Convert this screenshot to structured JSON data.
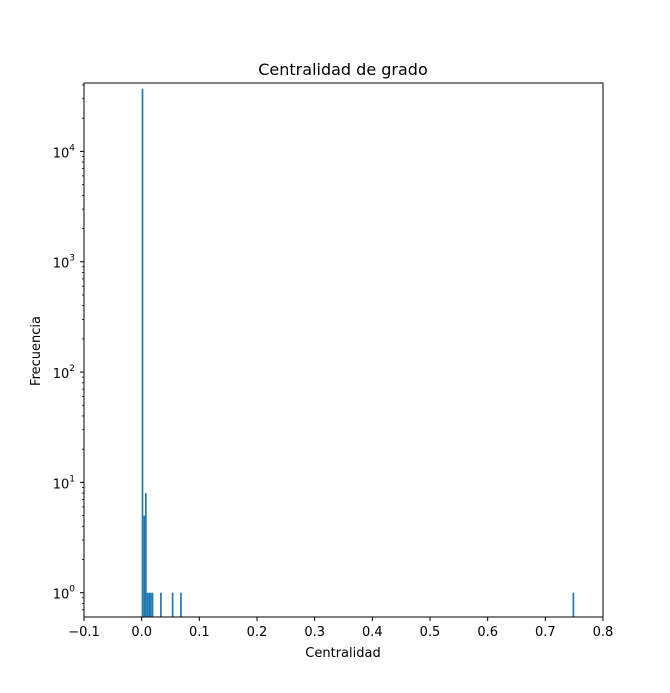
{
  "chart_data": {
    "type": "bar",
    "title": "Centralidad de grado",
    "xlabel": "Centralidad",
    "ylabel": "Frecuencia",
    "xlim": [
      -0.1,
      0.8
    ],
    "ylim_log10": [
      -0.22,
      4.62
    ],
    "yscale": "log",
    "bin_width": 0.0029,
    "x_ticks": [
      {
        "value": -0.1,
        "label": "−0.1"
      },
      {
        "value": 0.0,
        "label": "0.0"
      },
      {
        "value": 0.1,
        "label": "0.1"
      },
      {
        "value": 0.2,
        "label": "0.2"
      },
      {
        "value": 0.3,
        "label": "0.3"
      },
      {
        "value": 0.4,
        "label": "0.4"
      },
      {
        "value": 0.5,
        "label": "0.5"
      },
      {
        "value": 0.6,
        "label": "0.6"
      },
      {
        "value": 0.7,
        "label": "0.7"
      },
      {
        "value": 0.8,
        "label": "0.8"
      }
    ],
    "y_ticks": [
      {
        "exp": 0,
        "base": "10",
        "sup": "0"
      },
      {
        "exp": 1,
        "base": "10",
        "sup": "1"
      },
      {
        "exp": 2,
        "base": "10",
        "sup": "2"
      },
      {
        "exp": 3,
        "base": "10",
        "sup": "3"
      },
      {
        "exp": 4,
        "base": "10",
        "sup": "4"
      }
    ],
    "bars": [
      {
        "x": 0.0,
        "value": 37000
      },
      {
        "x": 0.0029,
        "value": 5
      },
      {
        "x": 0.0058,
        "value": 8
      },
      {
        "x": 0.0087,
        "value": 1
      },
      {
        "x": 0.0116,
        "value": 1
      },
      {
        "x": 0.0145,
        "value": 1
      },
      {
        "x": 0.0174,
        "value": 1
      },
      {
        "x": 0.0319,
        "value": 1
      },
      {
        "x": 0.0522,
        "value": 1
      },
      {
        "x": 0.0667,
        "value": 1
      },
      {
        "x": 0.7472,
        "value": 1
      }
    ],
    "bar_color": "#1f77b4"
  }
}
